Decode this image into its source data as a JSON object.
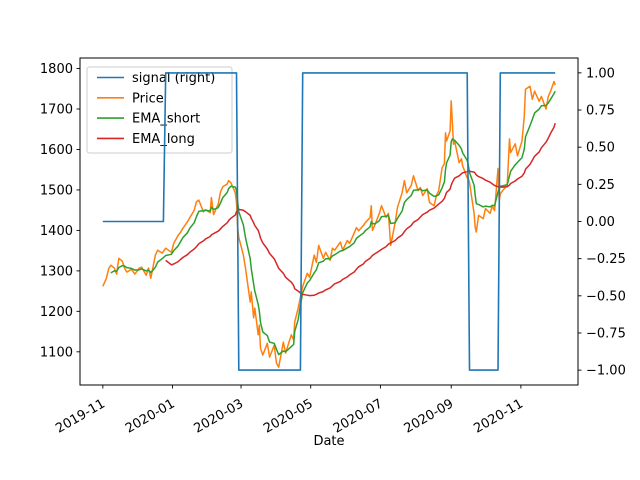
{
  "figure": {
    "kind": "matplotlib-line-chart",
    "background": "#ffffff"
  },
  "chart_data": {
    "type": "line",
    "title": "",
    "x_axis": {
      "label": "Date",
      "range": [
        "2019-10-12",
        "2020-12-21"
      ],
      "tick_rotation_deg": 30,
      "ticks": [
        {
          "date": "2019-11-01",
          "label": "2019-11"
        },
        {
          "date": "2020-01-01",
          "label": "2020-01"
        },
        {
          "date": "2020-03-01",
          "label": "2020-03"
        },
        {
          "date": "2020-05-01",
          "label": "2020-05"
        },
        {
          "date": "2020-07-01",
          "label": "2020-07"
        },
        {
          "date": "2020-09-01",
          "label": "2020-09"
        },
        {
          "date": "2020-11-01",
          "label": "2020-11"
        }
      ]
    },
    "y_left": {
      "range": [
        1018,
        1826
      ],
      "tick_values": [
        1100,
        1200,
        1300,
        1400,
        1500,
        1600,
        1700,
        1800
      ],
      "labels": [
        "1100",
        "1200",
        "1300",
        "1400",
        "1500",
        "1600",
        "1700",
        "1800"
      ]
    },
    "y_right": {
      "range": [
        -1.1,
        1.1
      ],
      "tick_values": [
        -1.0,
        -0.75,
        -0.5,
        -0.25,
        0.0,
        0.25,
        0.5,
        0.75,
        1.0
      ],
      "labels": [
        "−1.00",
        "−0.75",
        "−0.50",
        "−0.25",
        "0.00",
        "0.25",
        "0.50",
        "0.75",
        "1.00"
      ]
    },
    "legend": {
      "position": "upper-left",
      "entries": [
        {
          "label": "signal (right)",
          "color": "#1f77b4"
        },
        {
          "label": "Price",
          "color": "#ff7f0e"
        },
        {
          "label": "EMA_short",
          "color": "#2ca02c"
        },
        {
          "label": "EMA_long",
          "color": "#d62728"
        }
      ]
    },
    "dates": [
      "2019-11-01",
      "2019-11-04",
      "2019-11-06",
      "2019-11-08",
      "2019-11-11",
      "2019-11-13",
      "2019-11-15",
      "2019-11-18",
      "2019-11-20",
      "2019-11-22",
      "2019-11-26",
      "2019-11-29",
      "2019-12-03",
      "2019-12-05",
      "2019-12-09",
      "2019-12-11",
      "2019-12-13",
      "2019-12-17",
      "2019-12-19",
      "2019-12-23",
      "2019-12-26",
      "2019-12-31",
      "2020-01-02",
      "2020-01-06",
      "2020-01-08",
      "2020-01-10",
      "2020-01-14",
      "2020-01-16",
      "2020-01-20",
      "2020-01-22",
      "2020-01-24",
      "2020-01-28",
      "2020-01-30",
      "2020-02-03",
      "2020-02-04",
      "2020-02-06",
      "2020-02-10",
      "2020-02-12",
      "2020-02-14",
      "2020-02-18",
      "2020-02-19",
      "2020-02-21",
      "2020-02-25",
      "2020-02-26",
      "2020-02-27",
      "2020-02-28",
      "2020-03-03",
      "2020-03-05",
      "2020-03-09",
      "2020-03-10",
      "2020-03-12",
      "2020-03-13",
      "2020-03-16",
      "2020-03-17",
      "2020-03-18",
      "2020-03-20",
      "2020-03-24",
      "2020-03-26",
      "2020-03-30",
      "2020-04-01",
      "2020-04-03",
      "2020-04-07",
      "2020-04-09",
      "2020-04-14",
      "2020-04-16",
      "2020-04-17",
      "2020-04-20",
      "2020-04-22",
      "2020-04-24",
      "2020-04-28",
      "2020-04-30",
      "2020-05-04",
      "2020-05-06",
      "2020-05-08",
      "2020-05-12",
      "2020-05-14",
      "2020-05-18",
      "2020-05-20",
      "2020-05-22",
      "2020-05-27",
      "2020-05-29",
      "2020-06-02",
      "2020-06-04",
      "2020-06-08",
      "2020-06-10",
      "2020-06-12",
      "2020-06-16",
      "2020-06-18",
      "2020-06-22",
      "2020-06-23",
      "2020-06-24",
      "2020-06-26",
      "2020-06-30",
      "2020-07-02",
      "2020-07-06",
      "2020-07-08",
      "2020-07-10",
      "2020-07-14",
      "2020-07-16",
      "2020-07-20",
      "2020-07-22",
      "2020-07-24",
      "2020-07-28",
      "2020-07-30",
      "2020-08-03",
      "2020-08-05",
      "2020-08-07",
      "2020-08-11",
      "2020-08-13",
      "2020-08-17",
      "2020-08-19",
      "2020-08-21",
      "2020-08-24",
      "2020-08-26",
      "2020-08-27",
      "2020-08-28",
      "2020-08-31",
      "2020-09-01",
      "2020-09-02",
      "2020-09-03",
      "2020-09-04",
      "2020-09-08",
      "2020-09-10",
      "2020-09-11",
      "2020-09-15",
      "2020-09-16",
      "2020-09-17",
      "2020-09-21",
      "2020-09-22",
      "2020-09-23",
      "2020-09-25",
      "2020-09-29",
      "2020-10-01",
      "2020-10-05",
      "2020-10-07",
      "2020-10-09",
      "2020-10-12",
      "2020-10-13",
      "2020-10-14",
      "2020-10-16",
      "2020-10-20",
      "2020-10-22",
      "2020-10-23",
      "2020-10-27",
      "2020-10-29",
      "2020-11-02",
      "2020-11-04",
      "2020-11-05",
      "2020-11-09",
      "2020-11-11",
      "2020-11-13",
      "2020-11-17",
      "2020-11-19",
      "2020-11-23",
      "2020-11-25",
      "2020-11-27",
      "2020-11-30",
      "2020-12-01"
    ],
    "series": [
      {
        "name": "Price",
        "axis": "left",
        "color": "#ff7f0e",
        "values": [
          1262,
          1281,
          1305,
          1314,
          1307,
          1292,
          1331,
          1324,
          1307,
          1297,
          1304,
          1292,
          1307,
          1309,
          1289,
          1307,
          1282,
          1339,
          1351,
          1344,
          1356,
          1346,
          1368,
          1388,
          1395,
          1405,
          1421,
          1431,
          1450,
          1471,
          1475,
          1446,
          1451,
          1444,
          1481,
          1439,
          1465,
          1495,
          1508,
          1515,
          1523,
          1518,
          1493,
          1470,
          1409,
          1382,
          1340,
          1305,
          1223,
          1248,
          1184,
          1208,
          1142,
          1166,
          1109,
          1092,
          1121,
          1087,
          1116,
          1072,
          1062,
          1124,
          1097,
          1142,
          1130,
          1174,
          1208,
          1235,
          1262,
          1294,
          1284,
          1339,
          1321,
          1363,
          1331,
          1346,
          1326,
          1356,
          1351,
          1371,
          1351,
          1375,
          1368,
          1393,
          1407,
          1399,
          1412,
          1420,
          1432,
          1461,
          1400,
          1412,
          1442,
          1461,
          1432,
          1442,
          1363,
          1420,
          1457,
          1493,
          1523,
          1493,
          1511,
          1535,
          1498,
          1506,
          1486,
          1503,
          1469,
          1461,
          1486,
          1498,
          1555,
          1565,
          1641,
          1621,
          1646,
          1720,
          1665,
          1613,
          1621,
          1567,
          1577,
          1560,
          1530,
          1528,
          1518,
          1442,
          1408,
          1396,
          1437,
          1429,
          1454,
          1442,
          1460,
          1449,
          1553,
          1474,
          1490,
          1498,
          1512,
          1626,
          1592,
          1614,
          1584,
          1621,
          1683,
          1749,
          1756,
          1724,
          1744,
          1719,
          1731,
          1700,
          1731,
          1744,
          1768,
          1759
        ]
      },
      {
        "name": "EMA_short",
        "axis": "left",
        "color": "#2ca02c",
        "values": [
          null,
          null,
          null,
          1295,
          1300,
          1299,
          1308,
          1313,
          1312,
          1308,
          1306,
          1302,
          1303,
          1305,
          1300,
          1302,
          1296,
          1309,
          1322,
          1330,
          1338,
          1341,
          1350,
          1362,
          1372,
          1382,
          1394,
          1405,
          1419,
          1434,
          1447,
          1449,
          1450,
          1448,
          1457,
          1452,
          1456,
          1468,
          1481,
          1494,
          1503,
          1509,
          1507,
          1498,
          1472,
          1446,
          1414,
          1381,
          1330,
          1305,
          1268,
          1250,
          1217,
          1201,
          1173,
          1149,
          1140,
          1124,
          1121,
          1106,
          1093,
          1102,
          1100,
          1113,
          1118,
          1150,
          1180,
          1215,
          1246,
          1270,
          1276,
          1295,
          1303,
          1320,
          1324,
          1330,
          1330,
          1337,
          1340,
          1349,
          1350,
          1357,
          1360,
          1369,
          1380,
          1385,
          1393,
          1400,
          1409,
          1422,
          1417,
          1416,
          1424,
          1434,
          1435,
          1437,
          1417,
          1419,
          1430,
          1448,
          1469,
          1476,
          1486,
          1499,
          1500,
          1502,
          1498,
          1500,
          1492,
          1484,
          1485,
          1488,
          1505,
          1520,
          1550,
          1567,
          1586,
          1619,
          1626,
          1624,
          1623,
          1610,
          1601,
          1592,
          1573,
          1561,
          1543,
          1512,
          1487,
          1466,
          1464,
          1458,
          1460,
          1458,
          1462,
          1461,
          1495,
          1505,
          1509,
          1510,
          1513,
          1535,
          1546,
          1562,
          1568,
          1580,
          1601,
          1631,
          1659,
          1674,
          1690,
          1700,
          1708,
          1709,
          1715,
          1724,
          1738,
          1744
        ]
      },
      {
        "name": "EMA_long",
        "axis": "left",
        "color": "#d62728",
        "values": [
          null,
          null,
          null,
          null,
          null,
          null,
          null,
          null,
          null,
          null,
          null,
          null,
          null,
          null,
          null,
          null,
          null,
          null,
          null,
          null,
          1326,
          1315,
          1317,
          1323,
          1328,
          1333,
          1340,
          1346,
          1354,
          1360,
          1367,
          1374,
          1379,
          1385,
          1389,
          1392,
          1398,
          1404,
          1410,
          1419,
          1424,
          1430,
          1438,
          1446,
          1449,
          1452,
          1450,
          1446,
          1437,
          1430,
          1419,
          1412,
          1400,
          1392,
          1381,
          1369,
          1354,
          1343,
          1330,
          1318,
          1306,
          1294,
          1284,
          1272,
          1264,
          1256,
          1250,
          1245,
          1242,
          1240,
          1239,
          1240,
          1242,
          1245,
          1249,
          1253,
          1258,
          1263,
          1268,
          1274,
          1279,
          1285,
          1290,
          1297,
          1304,
          1310,
          1317,
          1324,
          1331,
          1335,
          1338,
          1342,
          1349,
          1353,
          1360,
          1366,
          1369,
          1375,
          1381,
          1389,
          1397,
          1404,
          1412,
          1420,
          1427,
          1433,
          1439,
          1445,
          1450,
          1455,
          1460,
          1465,
          1472,
          1479,
          1487,
          1494,
          1502,
          1512,
          1519,
          1524,
          1529,
          1535,
          1540,
          1542,
          1545,
          1546,
          1546,
          1544,
          1541,
          1537,
          1533,
          1528,
          1524,
          1519,
          1515,
          1511,
          1508,
          1507,
          1507,
          1507,
          1508,
          1512,
          1516,
          1522,
          1527,
          1534,
          1542,
          1551,
          1563,
          1573,
          1583,
          1594,
          1604,
          1618,
          1628,
          1640,
          1655,
          1665
        ]
      }
    ],
    "signal_series": {
      "name": "signal (right)",
      "axis": "right",
      "color": "#1f77b4",
      "points": [
        [
          "2019-11-01",
          0
        ],
        [
          "2019-12-24",
          0
        ],
        [
          "2019-12-26",
          1
        ],
        [
          "2020-02-26",
          1
        ],
        [
          "2020-02-28",
          -1
        ],
        [
          "2020-04-22",
          -1
        ],
        [
          "2020-04-24",
          1
        ],
        [
          "2020-09-15",
          1
        ],
        [
          "2020-09-17",
          -1
        ],
        [
          "2020-10-12",
          -1
        ],
        [
          "2020-10-14",
          1
        ],
        [
          "2020-12-01",
          1
        ]
      ]
    }
  }
}
